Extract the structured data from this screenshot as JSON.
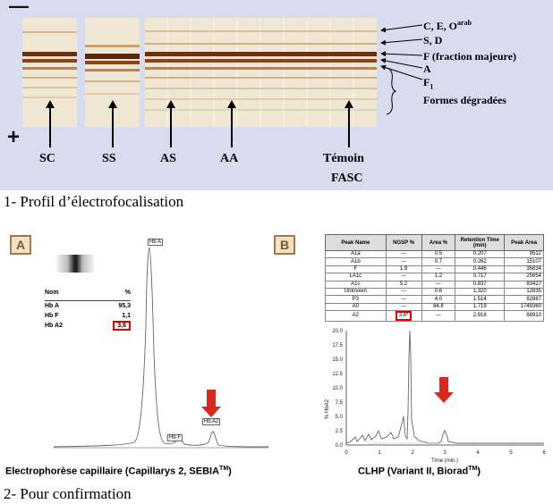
{
  "gel": {
    "polarity_top": "—",
    "polarity_bottom": "+",
    "lanes": [
      "SC",
      "SS",
      "AS",
      "AA",
      "Témoin"
    ],
    "control_sublabel": "FASC",
    "bands": [
      {
        "label": "C, E, O",
        "sup": "arab"
      },
      {
        "label": "S, D"
      },
      {
        "label": "F (fraction majeure)"
      },
      {
        "label": "A"
      },
      {
        "label": "F",
        "sub": "1"
      },
      {
        "label": "Formes dégradées"
      }
    ]
  },
  "section1_caption": "1- Profil d’électrofocalisation",
  "section2_caption": "2- Pour confirmation",
  "panel_a": {
    "tag": "A",
    "table_header": {
      "name": "Nom",
      "pct": "%"
    },
    "table_rows": [
      {
        "name": "Hb A",
        "pct": "95,3"
      },
      {
        "name": "Hb F",
        "pct": "1,1"
      },
      {
        "name": "Hb A2",
        "pct": "3,6"
      }
    ],
    "peak_labels": {
      "hba": "Hb A",
      "hbf": "Hb F",
      "hba2": "Hb A2"
    },
    "caption": "Electrophorèse capillaire (Capillarys 2, SEBIA",
    "caption_sup": "TM",
    "caption_end": ")"
  },
  "panel_b": {
    "tag": "B",
    "table_headers": [
      "Peak Name",
      "NGSP %",
      "Area %",
      "Retention Time (min)",
      "Peak Area"
    ],
    "table_rows": [
      [
        "A1a",
        "---",
        "0.5",
        "0.207",
        "9512"
      ],
      [
        "A1b",
        "---",
        "0.7",
        "0.262",
        "15107"
      ],
      [
        "F",
        "1.9",
        "---",
        "0.446",
        "35634"
      ],
      [
        "LA1c",
        "---",
        "1.2",
        "0.717",
        "25654"
      ],
      [
        "A1c",
        "5.2",
        "---",
        "0.837",
        "83427"
      ],
      [
        "Unknown",
        "---",
        "0.6",
        "1.320",
        "12835"
      ],
      [
        "P3",
        "---",
        "4.0",
        "1.514",
        "82887"
      ],
      [
        "A0",
        "---",
        "84.8",
        "1.719",
        "1749360"
      ],
      [
        "A2",
        "3.6*",
        "---",
        "2.918",
        "68910"
      ]
    ],
    "y_label": "% HbA2",
    "y_ticks": [
      "20.0",
      "17.5",
      "15.0",
      "12.5",
      "10.0",
      "7.5",
      "5.0",
      "2.5",
      "0.0"
    ],
    "x_ticks": [
      "0",
      "1",
      "2",
      "3",
      "4",
      "5",
      "6"
    ],
    "x_label": "Time (min.)",
    "caption": "CLHP (Variant II, Biorad",
    "caption_sup": "TM",
    "caption_end": ")"
  },
  "colors": {
    "gel_background": "#d9dcee",
    "gel_strip": "#efe6d4",
    "band_dark": "#6b3010",
    "band_mid": "#b06a2c",
    "highlight_red": "#d42a20"
  }
}
